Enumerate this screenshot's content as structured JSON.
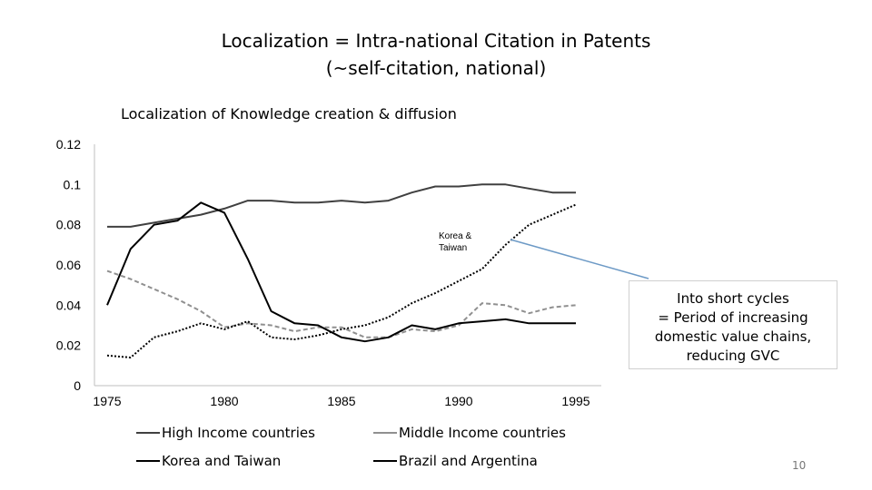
{
  "slide": {
    "title_line1": "Localization = Intra-national Citation in Patents",
    "title_line2": "(~self-citation, national)",
    "annotation": [
      "Into short cycles",
      "= Period of increasing",
      "domestic value chains,",
      "reducing GVC"
    ],
    "callout": [
      "Korea &",
      "Taiwan"
    ],
    "page_number": "10"
  },
  "chart_data": {
    "type": "line",
    "title": "Localization of Knowledge creation & diffusion",
    "xlabel": "",
    "ylabel": "",
    "xlim": [
      1975,
      1995
    ],
    "ylim": [
      0,
      0.12
    ],
    "x_ticks": [
      "1975",
      "1980",
      "1985",
      "1990",
      "1995"
    ],
    "y_ticks": [
      "0",
      "0.02",
      "0.04",
      "0.06",
      "0.08",
      "0.1",
      "0.12"
    ],
    "legend": "bottom",
    "x": [
      1975,
      1976,
      1977,
      1978,
      1979,
      1980,
      1981,
      1982,
      1983,
      1984,
      1985,
      1986,
      1987,
      1988,
      1989,
      1990,
      1991,
      1992,
      1993,
      1994,
      1995
    ],
    "series": [
      {
        "name": "High Income countries",
        "color": "#404040",
        "dash": "solid",
        "values": [
          0.079,
          0.079,
          0.081,
          0.083,
          0.085,
          0.088,
          0.092,
          0.092,
          0.091,
          0.091,
          0.092,
          0.091,
          0.092,
          0.096,
          0.099,
          0.099,
          0.1,
          0.1,
          0.098,
          0.096,
          0.096
        ]
      },
      {
        "name": "Middle Income countries",
        "color": "#909090",
        "dash": "dashed",
        "values": [
          0.057,
          0.053,
          0.048,
          0.043,
          0.037,
          0.029,
          0.031,
          0.03,
          0.027,
          0.029,
          0.029,
          0.024,
          0.024,
          0.028,
          0.027,
          0.03,
          0.041,
          0.04,
          0.036,
          0.039,
          0.04
        ]
      },
      {
        "name": "Korea and Taiwan",
        "color": "#000000",
        "dash": "dotted",
        "values": [
          0.015,
          0.014,
          0.024,
          0.027,
          0.031,
          0.028,
          0.032,
          0.024,
          0.023,
          0.025,
          0.028,
          0.03,
          0.034,
          0.041,
          0.046,
          0.052,
          0.058,
          0.07,
          0.08,
          0.085,
          0.09
        ]
      },
      {
        "name": "Brazil and Argentina",
        "color": "#000000",
        "dash": "solid",
        "values": [
          0.04,
          0.068,
          0.08,
          0.082,
          0.091,
          0.086,
          0.063,
          0.037,
          0.031,
          0.03,
          0.024,
          0.022,
          0.024,
          0.03,
          0.028,
          0.031,
          0.032,
          0.033,
          0.031,
          0.031,
          0.031
        ]
      }
    ]
  }
}
